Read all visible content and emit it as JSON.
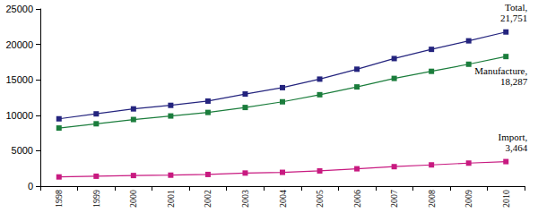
{
  "chart_data": {
    "type": "line",
    "categories": [
      "1998",
      "1999",
      "2000",
      "2001",
      "2002",
      "2003",
      "2004",
      "2005",
      "2006",
      "2007",
      "2008",
      "2009",
      "2010"
    ],
    "series": [
      {
        "name": "Total",
        "color": "#24247e",
        "marker": "square",
        "values": [
          9500,
          10200,
          10900,
          11400,
          12000,
          13000,
          13900,
          15100,
          16500,
          18000,
          19300,
          20500,
          21751
        ],
        "value_labels": [
          null,
          null,
          null,
          null,
          null,
          null,
          null,
          null,
          null,
          null,
          null,
          null,
          "Total,\n21,751"
        ]
      },
      {
        "name": "Manufacture",
        "color": "#1b7d3c",
        "marker": "square",
        "values": [
          8200,
          8800,
          9400,
          9900,
          10400,
          11100,
          11900,
          12900,
          14000,
          15200,
          16200,
          17200,
          18287
        ],
        "value_labels": [
          null,
          null,
          null,
          null,
          null,
          null,
          null,
          null,
          null,
          null,
          null,
          null,
          "Manufacture,\n18,287"
        ]
      },
      {
        "name": "Import",
        "color": "#c81a80",
        "marker": "square",
        "values": [
          1300,
          1400,
          1500,
          1550,
          1650,
          1850,
          1950,
          2150,
          2450,
          2750,
          3000,
          3250,
          3464
        ],
        "value_labels": [
          null,
          null,
          null,
          null,
          null,
          null,
          null,
          null,
          null,
          null,
          null,
          null,
          "Import,\n3,464"
        ]
      }
    ],
    "ylim": [
      0,
      25000
    ],
    "yticks": [
      0,
      5000,
      10000,
      15000,
      20000,
      25000
    ],
    "grid": false,
    "data_labels": true
  }
}
